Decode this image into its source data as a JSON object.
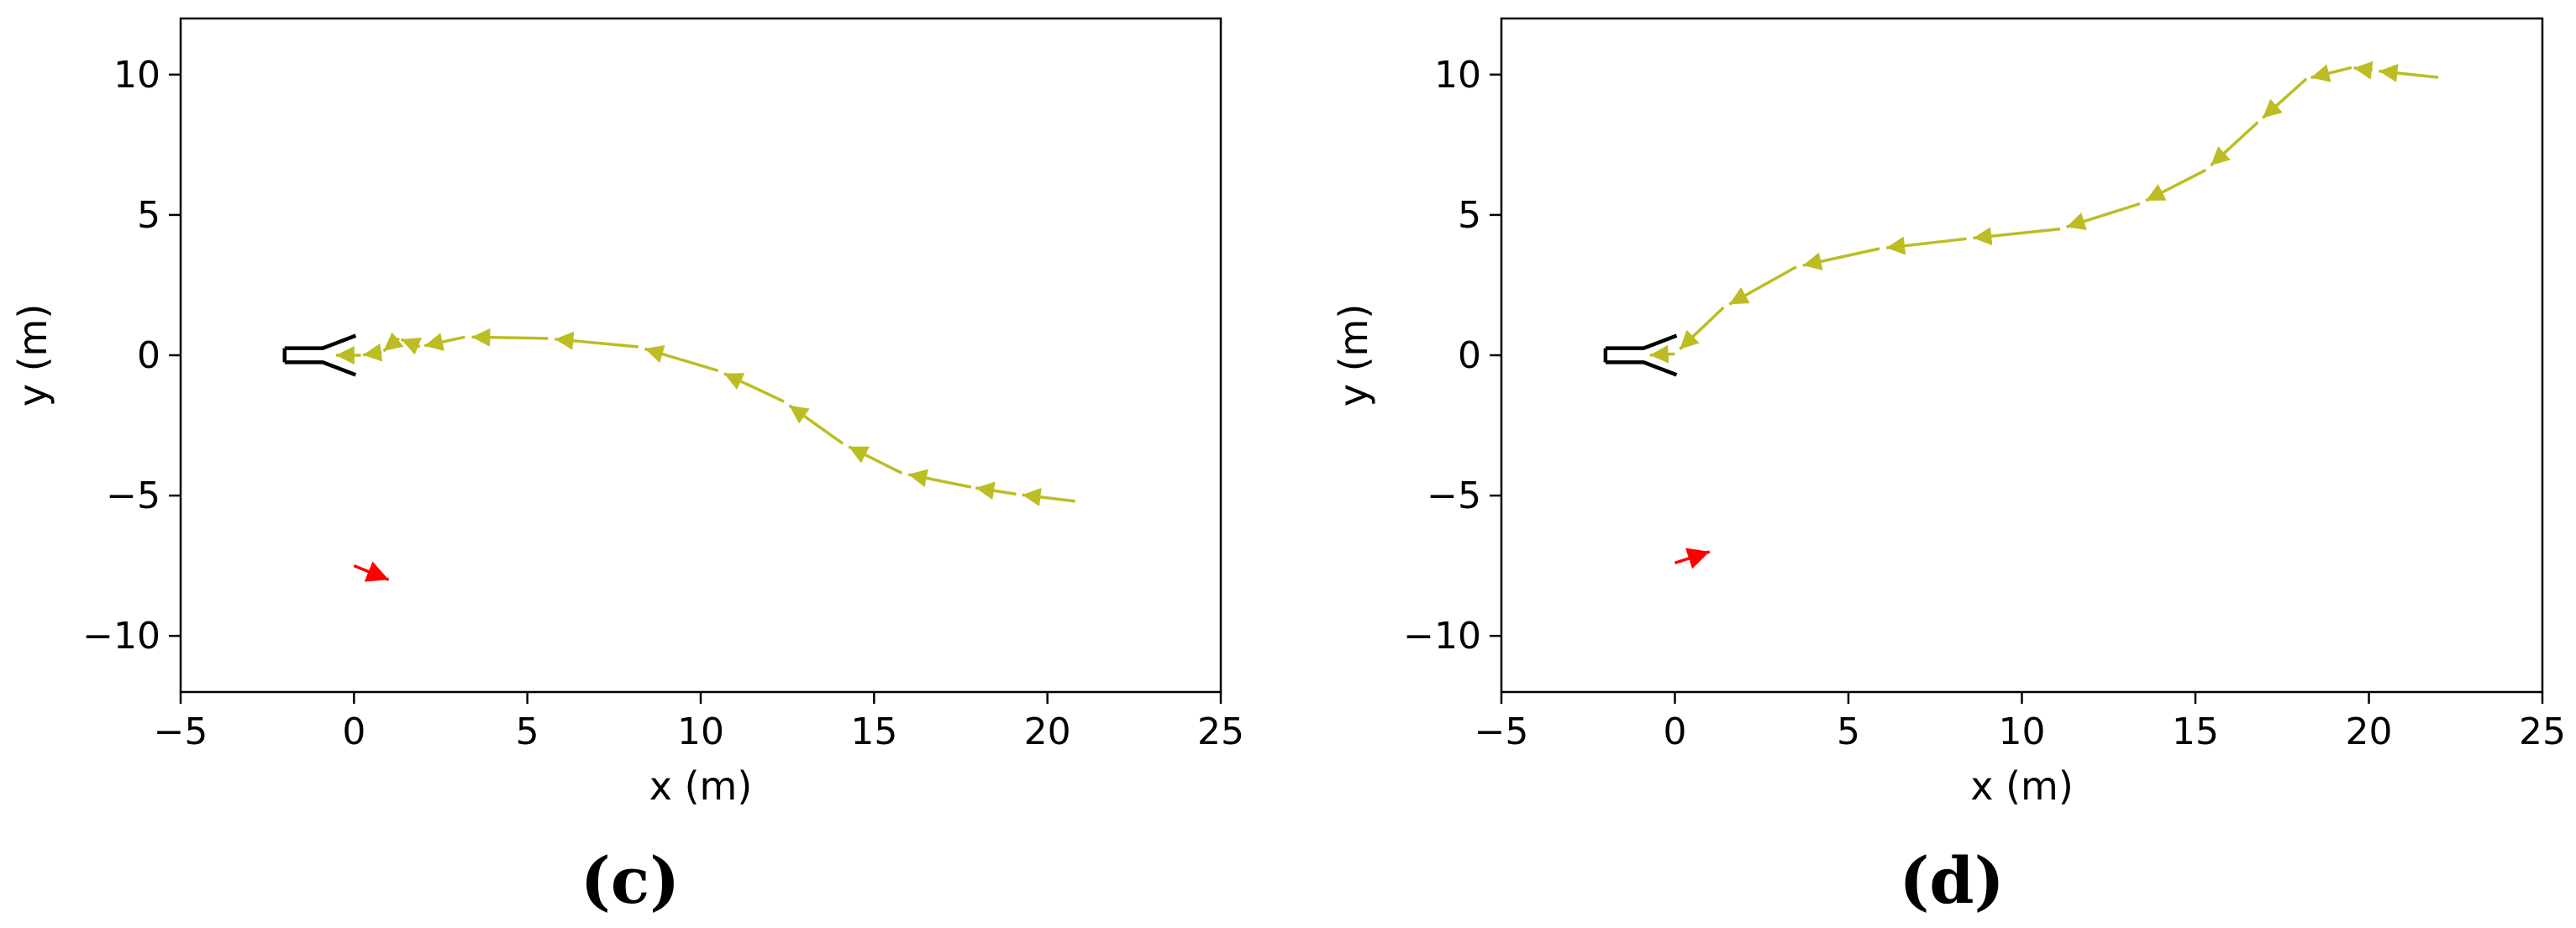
{
  "chart_data": [
    {
      "type": "line",
      "panel_label": "(c)",
      "xlabel": "x (m)",
      "ylabel": "y (m)",
      "xlim": [
        -5,
        25
      ],
      "ylim": [
        -12,
        12
      ],
      "xticks": [
        -5,
        0,
        5,
        10,
        15,
        20,
        25
      ],
      "yticks": [
        -10,
        -5,
        0,
        5,
        10
      ],
      "grid": false,
      "colors": {
        "trajectory": "#bcbd22",
        "wind_arrow": "#ff0000",
        "vehicle": "#000000"
      },
      "series": [
        {
          "points": [
            [
              20.8,
              -5.2
            ],
            [
              19.1,
              -4.95
            ],
            [
              17.8,
              -4.7
            ],
            [
              15.8,
              -4.2
            ],
            [
              14.1,
              -3.15
            ],
            [
              12.4,
              -1.65
            ],
            [
              10.5,
              -0.55
            ],
            [
              8.2,
              0.3
            ],
            [
              5.6,
              0.6
            ],
            [
              3.2,
              0.65
            ],
            [
              1.9,
              0.3
            ],
            [
              1.3,
              0.6
            ],
            [
              0.8,
              0.1
            ],
            [
              0.2,
              0.0
            ],
            [
              -0.6,
              0.0
            ]
          ]
        }
      ],
      "wind_arrow": {
        "from": [
          0.0,
          -7.5
        ],
        "to": [
          1.0,
          -8.0
        ]
      }
    },
    {
      "type": "line",
      "panel_label": "(d)",
      "xlabel": "x (m)",
      "ylabel": "y (m)",
      "xlim": [
        -5,
        25
      ],
      "ylim": [
        -12,
        12
      ],
      "xticks": [
        -5,
        0,
        5,
        10,
        15,
        20,
        25
      ],
      "yticks": [
        -10,
        -5,
        0,
        5,
        10
      ],
      "grid": false,
      "colors": {
        "trajectory": "#bcbd22",
        "wind_arrow": "#ff0000",
        "vehicle": "#000000"
      },
      "series": [
        {
          "points": [
            [
              22.0,
              9.9
            ],
            [
              20.1,
              10.15
            ],
            [
              19.5,
              10.25
            ],
            [
              18.2,
              9.85
            ],
            [
              16.8,
              8.3
            ],
            [
              15.3,
              6.6
            ],
            [
              13.4,
              5.4
            ],
            [
              11.1,
              4.5
            ],
            [
              8.4,
              4.15
            ],
            [
              5.9,
              3.8
            ],
            [
              3.5,
              3.15
            ],
            [
              1.4,
              1.7
            ],
            [
              0.0,
              0.05
            ],
            [
              -0.8,
              0.0
            ]
          ]
        }
      ],
      "wind_arrow": {
        "from": [
          0.0,
          -7.4
        ],
        "to": [
          1.0,
          -7.0
        ]
      }
    }
  ]
}
